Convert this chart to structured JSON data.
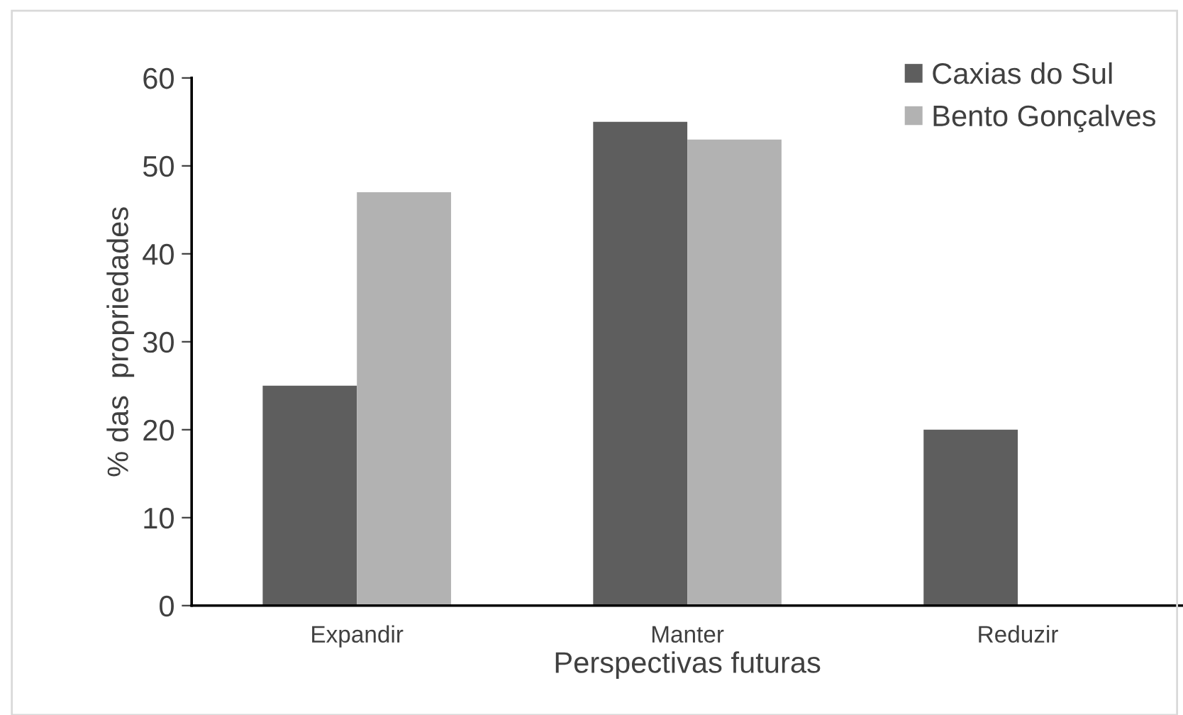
{
  "chart_data": {
    "type": "bar",
    "xlabel": "Perspectivas futuras",
    "ylabel": "% das  propriedades",
    "categories": [
      "Expandir",
      "Manter",
      "Reduzir"
    ],
    "series": [
      {
        "name": "Caxias do Sul",
        "color": "#5e5e5e",
        "values": [
          25,
          55,
          20
        ]
      },
      {
        "name": "Bento Gonçalves",
        "color": "#b2b2b2",
        "values": [
          47,
          53,
          0
        ]
      }
    ],
    "ylim": [
      0,
      60
    ],
    "yticks": [
      0,
      10,
      20,
      30,
      40,
      50,
      60
    ],
    "grid": false,
    "legend": "top right"
  }
}
